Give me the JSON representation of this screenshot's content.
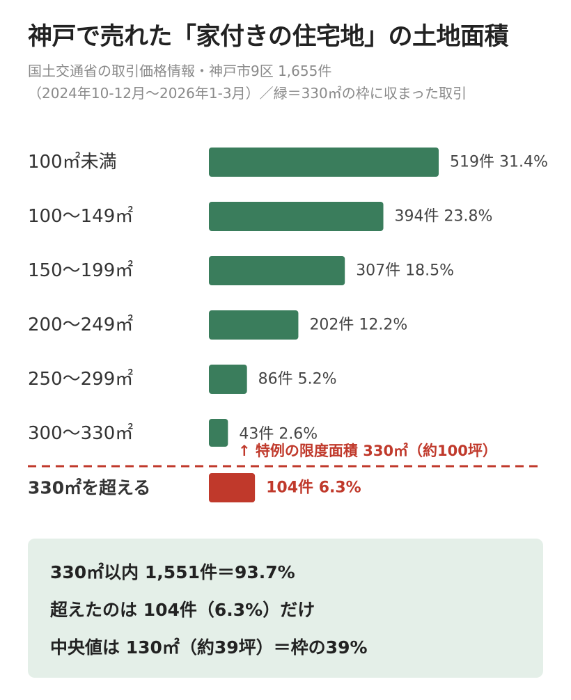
{
  "header": {
    "title": "神戸で売れた「家付きの住宅地」の土地面積",
    "subtitle_line1": "国土交通省の取引価格情報・神戸市9区 1,655件",
    "subtitle_line2": "（2024年10-12月〜2026年1-3月）／緑＝330㎡の枠に収まった取引"
  },
  "colors": {
    "within_limit": "#3a7d5c",
    "over_limit": "#c0392b",
    "summary_bg": "#e4efe8"
  },
  "chart_data": {
    "type": "bar",
    "orientation": "horizontal",
    "categories": [
      "100㎡未満",
      "100〜149㎡",
      "150〜199㎡",
      "200〜249㎡",
      "250〜299㎡",
      "300〜330㎡",
      "330㎡を超える"
    ],
    "values": [
      519,
      394,
      307,
      202,
      86,
      43,
      104
    ],
    "percentages": [
      "31.4%",
      "23.8%",
      "18.5%",
      "12.2%",
      "5.2%",
      "2.6%",
      "6.3%"
    ],
    "data_labels": [
      "519件 31.4%",
      "394件 23.8%",
      "307件 18.5%",
      "202件 12.2%",
      "86件 5.2%",
      "43件 2.6%",
      "104件 6.3%"
    ],
    "highlight_index": 6,
    "xlim": [
      0,
      519
    ],
    "annotation": "↑ 特例の限度面積 330㎡（約100坪）",
    "grid": false
  },
  "summary": {
    "line1": "330㎡以内 1,551件＝93.7%",
    "line2": "超えたのは 104件（6.3%）だけ",
    "line3": "中央値は 130㎡（約39坪）＝枠の39%"
  }
}
